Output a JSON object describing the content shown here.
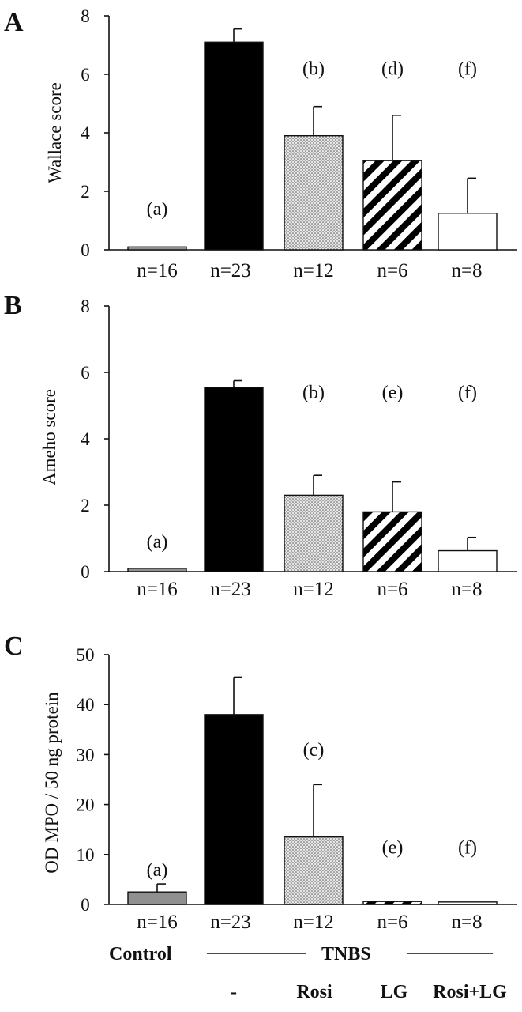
{
  "chart_data": [
    {
      "type": "bar",
      "panel": "A",
      "ylabel": "Wallace score",
      "ylim": [
        0,
        8
      ],
      "yticks": [
        0,
        2,
        4,
        6,
        8
      ],
      "n_labels": [
        "n=16",
        "n=23",
        "n=12",
        "n=6",
        "n=8"
      ],
      "values": [
        0.1,
        7.1,
        3.9,
        3.05,
        1.25
      ],
      "errors": [
        0,
        0.45,
        1.0,
        1.55,
        1.2
      ],
      "significance": [
        "(a)",
        "",
        "(b)",
        "(d)",
        "(f)"
      ],
      "sig_positions": [
        1.4,
        null,
        6.2,
        6.2,
        6.2
      ]
    },
    {
      "type": "bar",
      "panel": "B",
      "ylabel": "Ameho score",
      "ylim": [
        0,
        8
      ],
      "yticks": [
        0,
        2,
        4,
        6,
        8
      ],
      "n_labels": [
        "n=16",
        "n=23",
        "n=12",
        "n=6",
        "n=8"
      ],
      "values": [
        0.1,
        5.55,
        2.3,
        1.8,
        0.63
      ],
      "errors": [
        0,
        0.2,
        0.6,
        0.9,
        0.4
      ],
      "significance": [
        "(a)",
        "",
        "(b)",
        "(e)",
        "(f)"
      ],
      "sig_positions": [
        0.9,
        null,
        5.4,
        5.4,
        5.4
      ]
    },
    {
      "type": "bar",
      "panel": "C",
      "ylabel": "OD MPO / 50 ng protein",
      "ylim": [
        0,
        50
      ],
      "yticks": [
        0,
        10,
        20,
        30,
        40,
        50
      ],
      "n_labels": [
        "n=16",
        "n=23",
        "n=12",
        "n=6",
        "n=8"
      ],
      "values": [
        2.5,
        38,
        13.5,
        0.6,
        0.5
      ],
      "errors": [
        1.6,
        7.5,
        10.5,
        0,
        0
      ],
      "significance": [
        "(a)",
        "",
        "(c)",
        "(e)",
        "(f)"
      ],
      "sig_positions": [
        7,
        null,
        31,
        11.5,
        11.5
      ]
    }
  ],
  "bar_styles": [
    {
      "fill": "#909090",
      "pattern": "solid"
    },
    {
      "fill": "#000000",
      "pattern": "solid"
    },
    {
      "fill": "#e2e2e2",
      "pattern": "dots"
    },
    {
      "fill": "#ffffff",
      "pattern": "diagonal-stripes"
    },
    {
      "fill": "#ffffff",
      "pattern": "solid"
    }
  ],
  "groups": {
    "control": "Control",
    "tnbs": "TNBS",
    "treatments": [
      "-",
      "Rosi",
      "LG",
      "Rosi+LG"
    ]
  }
}
